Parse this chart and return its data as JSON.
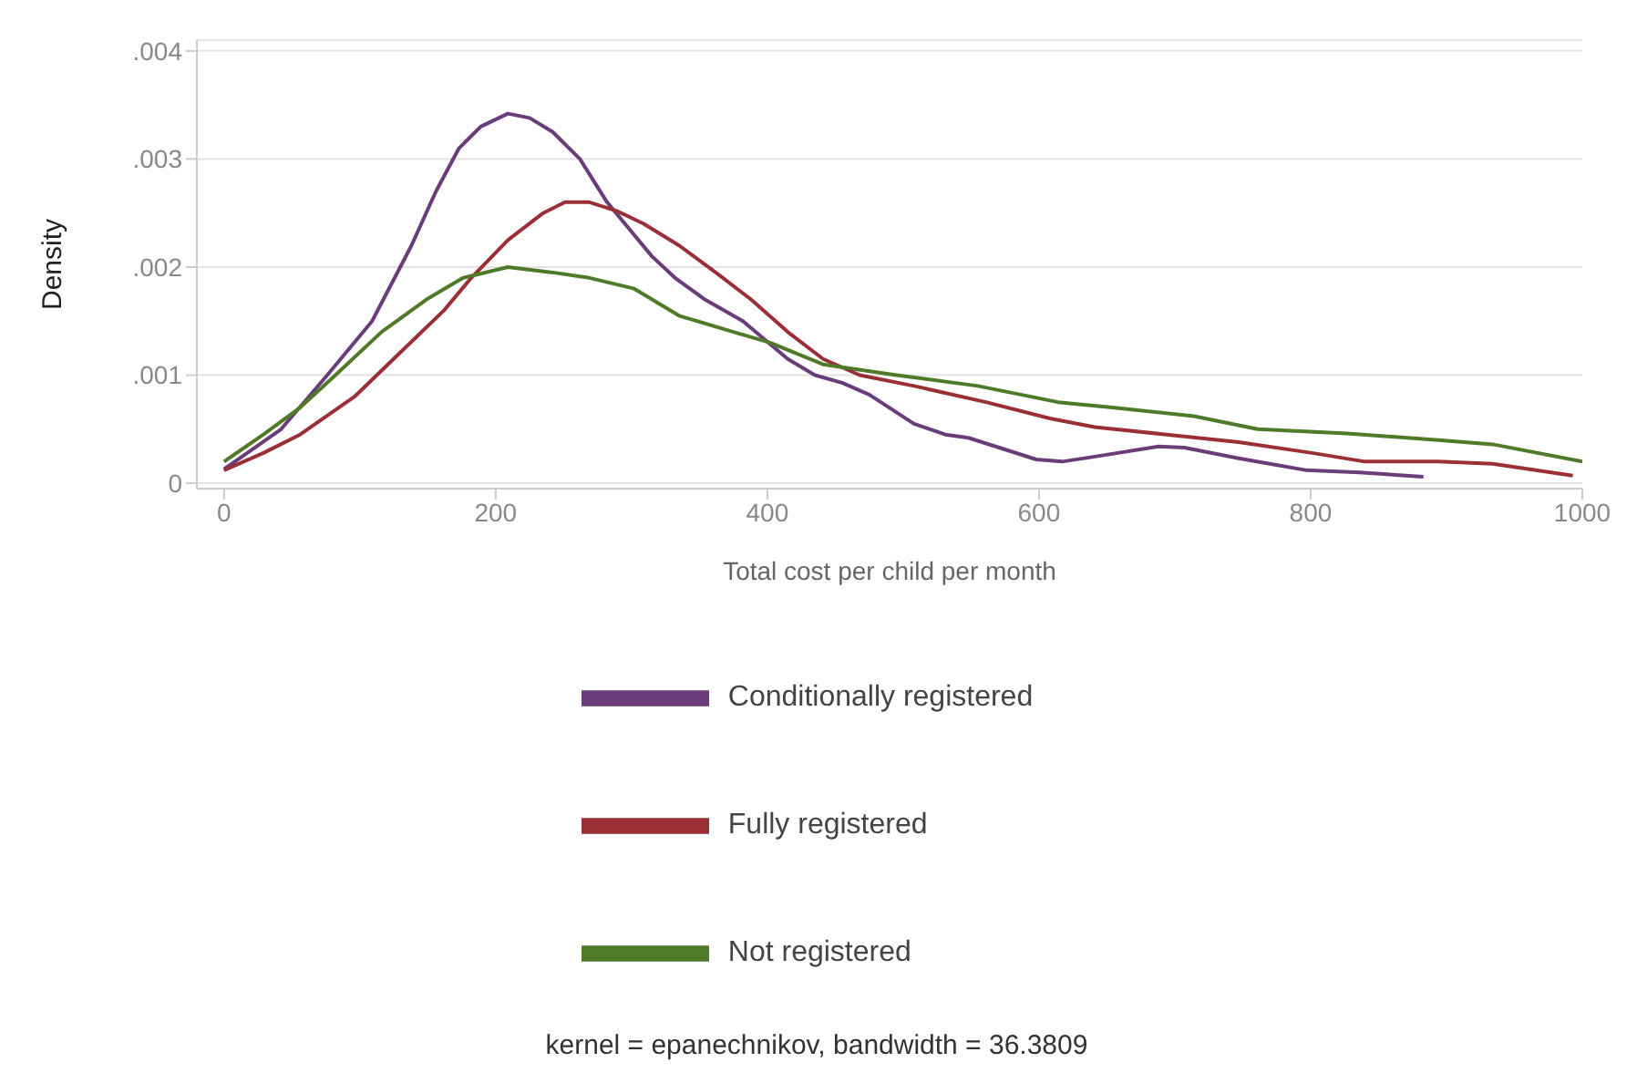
{
  "chart_data": {
    "type": "line",
    "xlabel": "Total cost per child per month",
    "ylabel": "Density",
    "annotations": [
      "kernel = epanechnikov, bandwidth = 36.3809"
    ],
    "xlim": [
      -20,
      1000
    ],
    "xticks": [
      0,
      200,
      400,
      600,
      800,
      1000
    ],
    "ylim": [
      -5e-05,
      0.0041
    ],
    "yticks": [
      {
        "value": 0,
        "label": "0"
      },
      {
        "value": 0.001,
        "label": ".001"
      },
      {
        "value": 0.002,
        "label": ".002"
      },
      {
        "value": 0.003,
        "label": ".003"
      },
      {
        "value": 0.004,
        "label": ".004"
      }
    ],
    "grid": "y",
    "legend": "bottom",
    "marker": "none",
    "line_style": "solid",
    "series": [
      {
        "name": "Conditionally registered",
        "color": "#6a3d7a",
        "x": [
          0,
          42,
          76,
          109,
          138,
          156,
          173,
          189,
          209,
          225,
          242,
          262,
          282,
          315,
          332,
          354,
          382,
          415,
          435,
          455,
          475,
          508,
          531,
          548,
          598,
          617,
          638,
          688,
          707,
          747,
          797,
          836,
          883
        ],
        "values": [
          0.00013,
          0.0005,
          0.001,
          0.0015,
          0.0022,
          0.0027,
          0.0031,
          0.0033,
          0.00342,
          0.00338,
          0.00325,
          0.003,
          0.0026,
          0.0021,
          0.0019,
          0.0017,
          0.0015,
          0.00115,
          0.001,
          0.00093,
          0.00082,
          0.00055,
          0.00045,
          0.00042,
          0.00022,
          0.0002,
          0.00024,
          0.00034,
          0.00033,
          0.00023,
          0.00012,
          0.0001,
          6e-05
        ]
      },
      {
        "name": "Fully registered",
        "color": "#9b2f36",
        "x": [
          0,
          29,
          56,
          96,
          129,
          162,
          182,
          209,
          235,
          251,
          269,
          289,
          309,
          335,
          362,
          388,
          415,
          441,
          468,
          508,
          561,
          608,
          641,
          694,
          747,
          801,
          840,
          894,
          934,
          993
        ],
        "values": [
          0.00012,
          0.00028,
          0.00045,
          0.0008,
          0.0012,
          0.0016,
          0.0019,
          0.00225,
          0.0025,
          0.0026,
          0.0026,
          0.00252,
          0.0024,
          0.0022,
          0.00195,
          0.0017,
          0.0014,
          0.00115,
          0.001,
          0.0009,
          0.00075,
          0.0006,
          0.00052,
          0.00045,
          0.00038,
          0.00028,
          0.0002,
          0.0002,
          0.00018,
          7e-05
        ]
      },
      {
        "name": "Not registered",
        "color": "#4f7a28",
        "x": [
          0,
          29,
          56,
          82,
          116,
          149,
          176,
          209,
          242,
          269,
          302,
          335,
          375,
          402,
          441,
          495,
          555,
          614,
          654,
          714,
          761,
          827,
          894,
          934,
          1000
        ],
        "values": [
          0.0002,
          0.00045,
          0.0007,
          0.001,
          0.0014,
          0.0017,
          0.0019,
          0.002,
          0.00195,
          0.0019,
          0.0018,
          0.00155,
          0.0014,
          0.0013,
          0.0011,
          0.001,
          0.0009,
          0.00075,
          0.0007,
          0.00062,
          0.0005,
          0.00046,
          0.0004,
          0.00036,
          0.0002
        ]
      }
    ]
  }
}
